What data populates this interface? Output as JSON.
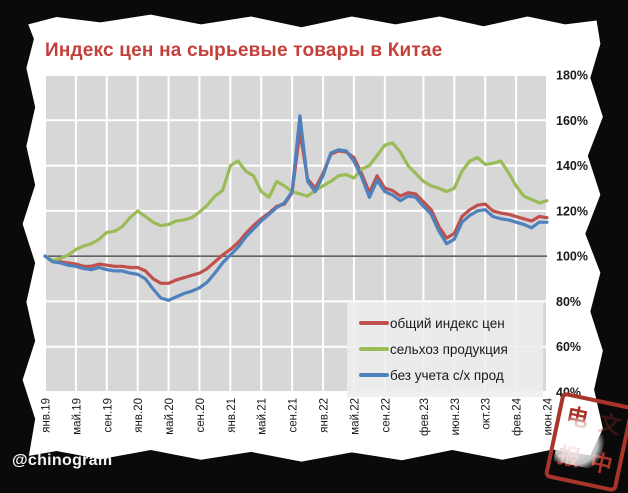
{
  "title": "Индекс цен на сырьевые товары в Китае",
  "watermark": "@chinogram",
  "seal": {
    "char_tl": "电",
    "char_tr": "文",
    "char_bl": "报",
    "char_br": "中"
  },
  "legend": {
    "items": [
      {
        "label": "общий индекс цен",
        "color": "#c0504d"
      },
      {
        "label": "сельхоз продукция",
        "color": "#9bbb59"
      },
      {
        "label": "без учета с/х прод",
        "color": "#4f81bd"
      }
    ]
  },
  "chart_data": {
    "type": "line",
    "title": "Индекс цен на сырьевые товары в Китае",
    "x_unit": "month (Jan 2019 – Jun 2024)",
    "months_total": 66,
    "x_tick_labels": [
      "янв.19",
      "май.19",
      "сен.19",
      "янв.20",
      "май.20",
      "сен.20",
      "янв.21",
      "май.21",
      "сен.21",
      "янв.22",
      "май.22",
      "сен.22",
      "фев.23",
      "июн.23",
      "окт.23",
      "фев.24",
      "июн.24"
    ],
    "x_tick_month_index": [
      0,
      4,
      8,
      12,
      16,
      20,
      24,
      28,
      32,
      36,
      40,
      44,
      49,
      53,
      57,
      61,
      65
    ],
    "ylim": [
      40,
      180
    ],
    "y_tick_values": [
      180,
      160,
      140,
      120,
      100,
      80,
      60,
      40
    ],
    "y_tick_labels": [
      "180%",
      "160%",
      "140%",
      "120%",
      "100%",
      "80%",
      "60%",
      "40%"
    ],
    "baseline_value": 100,
    "grid": true,
    "plot_bg": "#d7d7d7",
    "grid_color": "#ffffff",
    "baseline_color": "#4d4d4d",
    "legend_position": "bottom-right",
    "series": [
      {
        "name": "общий индекс цен",
        "color": "#c0504d",
        "values": [
          100,
          98,
          97.5,
          97,
          96.5,
          95.5,
          95.5,
          96.5,
          96,
          95.5,
          95.5,
          95,
          95,
          93.5,
          90,
          88,
          88,
          89.5,
          90.5,
          91.5,
          92.5,
          94.5,
          97.5,
          100.5,
          103,
          106,
          110,
          113.5,
          116.5,
          119,
          122,
          123,
          128,
          155,
          134,
          130,
          136.5,
          145,
          146.5,
          146,
          143.5,
          136.5,
          128,
          135.5,
          130,
          129,
          126.5,
          128,
          127.5,
          124,
          120.5,
          113,
          108,
          110,
          117.5,
          120.5,
          122.5,
          123,
          120,
          119,
          118.5,
          117.5,
          116.5,
          115.5,
          117.5,
          117
        ]
      },
      {
        "name": "сельхоз продукция",
        "color": "#9bbb59",
        "values": [
          100,
          98,
          99,
          100.5,
          103,
          104.5,
          105.5,
          107.5,
          110.5,
          111,
          113,
          117,
          120,
          117.5,
          115,
          113.5,
          114,
          115.5,
          116,
          117,
          119.5,
          122.5,
          126.5,
          129,
          140,
          142,
          137.5,
          135.5,
          128.5,
          126,
          133,
          131,
          128.5,
          127.5,
          126.5,
          129,
          131,
          133,
          135.5,
          136,
          134.5,
          138.5,
          140,
          144.5,
          149,
          150,
          146,
          140,
          136.5,
          133,
          131,
          130,
          128.5,
          130,
          137.5,
          142,
          143.5,
          140.5,
          141,
          142,
          137,
          131,
          126.5,
          125,
          123.5,
          124.5
        ]
      },
      {
        "name": "без учета с/х прод",
        "color": "#4f81bd",
        "values": [
          100,
          97.5,
          97,
          96,
          95.5,
          94.5,
          94,
          95,
          94,
          93.5,
          93.5,
          92.5,
          92,
          90,
          85.5,
          81.5,
          80.5,
          82,
          83.5,
          84.5,
          86,
          88.5,
          92.5,
          97,
          100.5,
          104,
          108.5,
          112,
          115.5,
          118.5,
          121.5,
          123.5,
          128.5,
          162,
          133,
          128.5,
          135.5,
          145.5,
          147,
          146.5,
          142,
          135,
          126,
          133.5,
          128.5,
          127,
          124.5,
          126.5,
          126,
          122,
          118.5,
          111,
          105.5,
          107.5,
          115,
          118,
          120,
          120.5,
          117.5,
          116.5,
          116,
          115,
          114,
          112.5,
          115,
          115
        ]
      }
    ]
  }
}
